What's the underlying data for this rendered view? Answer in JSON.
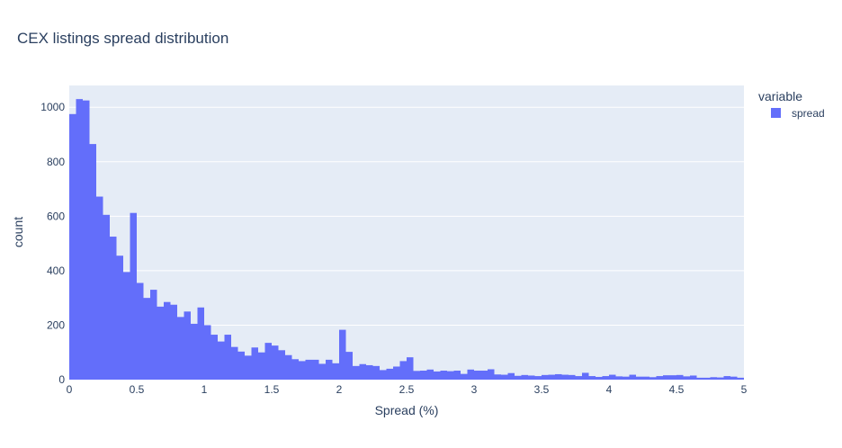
{
  "chart_data": {
    "type": "bar",
    "title": "CEX listings spread distribution",
    "xlabel": "Spread (%)",
    "ylabel": "count",
    "xlim": [
      0,
      5
    ],
    "ylim": [
      0,
      1080
    ],
    "x_ticks": [
      0,
      0.5,
      1,
      1.5,
      2,
      2.5,
      3,
      3.5,
      4,
      4.5,
      5
    ],
    "x_tick_labels": [
      "0",
      "0.5",
      "1",
      "1.5",
      "2",
      "2.5",
      "3",
      "3.5",
      "4",
      "4.5",
      "5"
    ],
    "y_ticks": [
      0,
      200,
      400,
      600,
      800,
      1000
    ],
    "y_tick_labels": [
      "0",
      "200",
      "400",
      "600",
      "800",
      "1000"
    ],
    "grid": true,
    "legend_position": "top-right",
    "legend_title": "variable",
    "bin_width": 0.05,
    "series": [
      {
        "name": "spread",
        "color": "#636efa",
        "values": [
          975,
          1030,
          1025,
          865,
          672,
          605,
          525,
          455,
          395,
          612,
          355,
          300,
          330,
          268,
          285,
          275,
          230,
          250,
          205,
          265,
          200,
          165,
          140,
          165,
          120,
          103,
          88,
          118,
          100,
          135,
          125,
          108,
          90,
          75,
          68,
          73,
          73,
          58,
          73,
          60,
          183,
          102,
          50,
          57,
          53,
          50,
          35,
          40,
          48,
          68,
          82,
          32,
          33,
          37,
          30,
          33,
          31,
          33,
          21,
          37,
          33,
          33,
          38,
          19,
          18,
          24,
          14,
          17,
          15,
          13,
          17,
          18,
          20,
          18,
          17,
          13,
          25,
          13,
          10,
          13,
          18,
          12,
          11,
          18,
          11,
          11,
          9,
          13,
          16,
          16,
          17,
          12,
          15,
          7,
          7,
          9,
          8,
          13,
          11,
          7
        ]
      }
    ],
    "colors": {
      "plot_background": "#e5ecf6",
      "gridline": "#ffffff",
      "text": "#2a3f5f"
    }
  }
}
